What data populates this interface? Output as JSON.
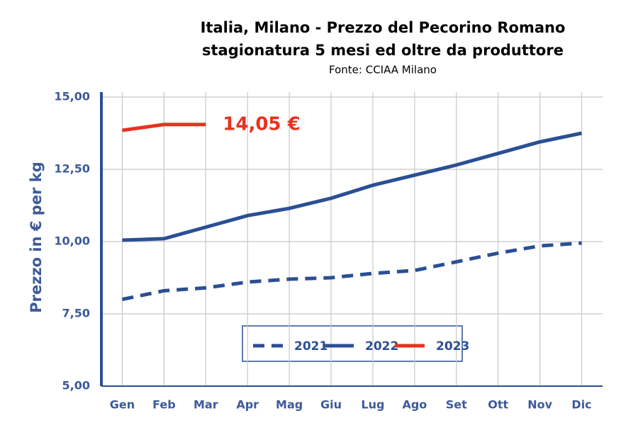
{
  "chart_data": {
    "type": "line",
    "title": "Italia, Milano - Prezzo del Pecorino Romano",
    "subtitle": "stagionatura 5 mesi ed oltre da produttore",
    "source": "Fonte: CCIAA Milano",
    "y_label": "Prezzo in € per kg",
    "annotation": "14,05 €",
    "categories": [
      "Gen",
      "Feb",
      "Mar",
      "Apr",
      "Mag",
      "Giu",
      "Lug",
      "Ago",
      "Set",
      "Ott",
      "Nov",
      "Dic"
    ],
    "series": [
      {
        "name": "2021",
        "color": "#2b4f94",
        "line_style": "dashed",
        "values": [
          8.0,
          8.3,
          8.4,
          8.6,
          8.7,
          8.75,
          8.9,
          9.0,
          9.3,
          9.6,
          9.85,
          9.95
        ]
      },
      {
        "name": "2022",
        "color": "#2b4f94",
        "line_style": "solid",
        "values": [
          10.05,
          10.1,
          10.5,
          10.9,
          11.15,
          11.5,
          11.95,
          12.3,
          12.65,
          13.05,
          13.45,
          13.75
        ]
      },
      {
        "name": "2023",
        "color": "#e8321f",
        "line_style": "solid",
        "values": [
          13.85,
          14.05,
          14.05,
          null,
          null,
          null,
          null,
          null,
          null,
          null,
          null,
          null
        ]
      }
    ],
    "ylim": [
      5,
      15
    ],
    "yticks": [
      {
        "value": 5,
        "label": "5,00"
      },
      {
        "value": 7.5,
        "label": "7,50"
      },
      {
        "value": 10,
        "label": "10,00"
      },
      {
        "value": 12.5,
        "label": "12,50"
      },
      {
        "value": 15,
        "label": "15,00"
      }
    ],
    "grid": true
  }
}
